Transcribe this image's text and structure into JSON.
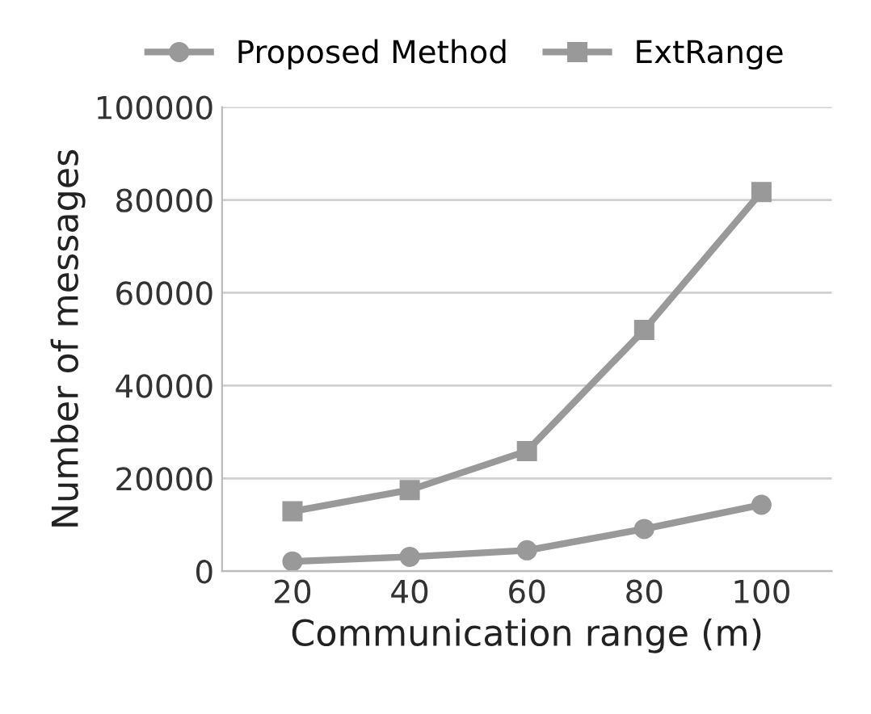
{
  "chart_data": {
    "type": "line",
    "xlabel": "Communication range (m)",
    "ylabel": "Number of messages",
    "categories": [
      "20",
      "40",
      "60",
      "80",
      "100"
    ],
    "series": [
      {
        "name": "Proposed Method",
        "color": "#999999",
        "marker": "circle",
        "values": [
          2100,
          3100,
          4500,
          9100,
          14300
        ]
      },
      {
        "name": "ExtRange",
        "color": "#999999",
        "marker": "square",
        "values": [
          12900,
          17500,
          25900,
          52000,
          81700
        ]
      }
    ],
    "ylim": [
      0,
      100000
    ],
    "yticks": [
      0,
      20000,
      40000,
      60000,
      80000,
      100000
    ],
    "grid": "y",
    "legend": "top",
    "line_style": "solid"
  }
}
